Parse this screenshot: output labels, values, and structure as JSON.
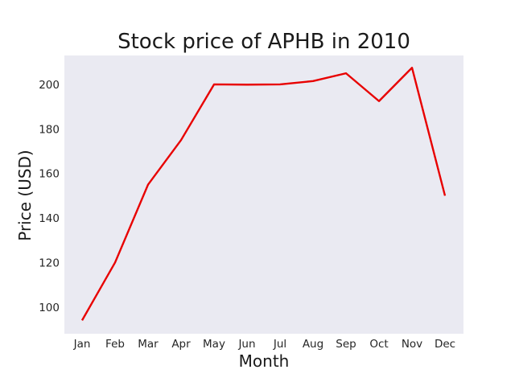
{
  "chart_data": {
    "type": "line",
    "title": "Stock price of APHB in 2010",
    "xlabel": "Month",
    "ylabel": "Price (USD)",
    "categories": [
      "Jan",
      "Feb",
      "Mar",
      "Apr",
      "May",
      "Jun",
      "Jul",
      "Aug",
      "Sep",
      "Oct",
      "Nov",
      "Dec"
    ],
    "series": [
      {
        "values": [
          94,
          120,
          155,
          175,
          200,
          199.9,
          200,
          201.5,
          205,
          192.5,
          207.5,
          150
        ],
        "color": "#e80000"
      }
    ],
    "yticks": [
      100,
      120,
      140,
      160,
      180,
      200
    ],
    "ylim": [
      88,
      213
    ],
    "grid": false,
    "background": "#eaeaf2"
  }
}
